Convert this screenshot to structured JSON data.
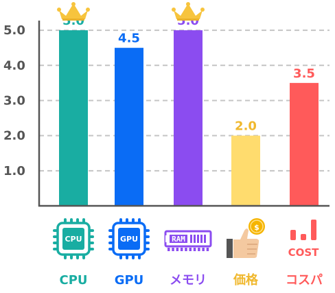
{
  "chart_data": {
    "type": "bar",
    "categories": [
      "CPU",
      "GPU",
      "メモリ",
      "価格",
      "コスパ"
    ],
    "values": [
      5.0,
      4.5,
      5.0,
      2.0,
      3.5
    ],
    "value_labels": [
      "5.0",
      "4.5",
      "5.0",
      "2.0",
      "3.5"
    ],
    "y_ticks": [
      "1.0",
      "2.0",
      "3.0",
      "4.0",
      "5.0"
    ],
    "ylim": [
      0,
      5.5
    ],
    "grid": true,
    "colors": [
      "#19ada2",
      "#0a6cf5",
      "#8b4cf0",
      "#ffdc6e",
      "#ff5a5a"
    ],
    "label_colors": [
      "#19ada2",
      "#0a6cf5",
      "#8b4cf0",
      "#f0b82e",
      "#ff5a5a"
    ],
    "crowned": [
      true,
      false,
      true,
      false,
      false
    ],
    "icons": [
      "cpu-chip-icon",
      "gpu-chip-icon",
      "ram-module-icon",
      "price-thumbs-up-coin-icon",
      "cost-bars-icon"
    ],
    "icon_texts": [
      "CPU",
      "GPU",
      "RAM",
      "$",
      "COST"
    ]
  }
}
